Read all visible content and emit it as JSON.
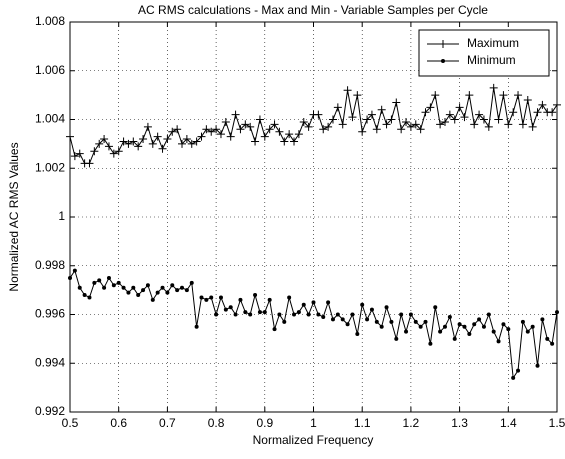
{
  "chart_data": {
    "type": "line",
    "title": "AC RMS calculations - Max and Min - Variable Samples per Cycle",
    "xlabel": "Normalized Frequency",
    "ylabel": "Normalized AC RMS Values",
    "x": [
      0.5,
      0.51,
      0.52,
      0.53,
      0.54,
      0.55,
      0.56,
      0.57,
      0.58,
      0.59,
      0.6,
      0.61,
      0.62,
      0.63,
      0.64,
      0.65,
      0.66,
      0.67,
      0.68,
      0.69,
      0.7,
      0.71,
      0.72,
      0.73,
      0.74,
      0.75,
      0.76,
      0.77,
      0.78,
      0.79,
      0.8,
      0.81,
      0.82,
      0.83,
      0.84,
      0.85,
      0.86,
      0.87,
      0.88,
      0.89,
      0.9,
      0.91,
      0.92,
      0.93,
      0.94,
      0.95,
      0.96,
      0.97,
      0.98,
      0.99,
      1.0,
      1.01,
      1.02,
      1.03,
      1.04,
      1.05,
      1.06,
      1.07,
      1.08,
      1.09,
      1.1,
      1.11,
      1.12,
      1.13,
      1.14,
      1.15,
      1.16,
      1.17,
      1.18,
      1.19,
      1.2,
      1.21,
      1.22,
      1.23,
      1.24,
      1.25,
      1.26,
      1.27,
      1.28,
      1.29,
      1.3,
      1.31,
      1.32,
      1.33,
      1.34,
      1.35,
      1.36,
      1.37,
      1.38,
      1.39,
      1.4,
      1.41,
      1.42,
      1.43,
      1.44,
      1.45,
      1.46,
      1.47,
      1.48,
      1.49,
      1.5
    ],
    "series": [
      {
        "name": "Maximum",
        "color": "#000000",
        "marker": "plus",
        "values": [
          1.0033,
          1.0025,
          1.0026,
          1.0022,
          1.0022,
          1.0027,
          1.003,
          1.0032,
          1.0029,
          1.0026,
          1.0027,
          1.0031,
          1.003,
          1.0031,
          1.0029,
          1.0032,
          1.0037,
          1.003,
          1.0033,
          1.0028,
          1.0032,
          1.0035,
          1.0036,
          1.003,
          1.0032,
          1.003,
          1.0031,
          1.0033,
          1.0036,
          1.0035,
          1.0036,
          1.0034,
          1.0039,
          1.0033,
          1.0042,
          1.0036,
          1.0038,
          1.0037,
          1.0031,
          1.004,
          1.0033,
          1.0036,
          1.0038,
          1.0035,
          1.0031,
          1.0034,
          1.0031,
          1.0034,
          1.0039,
          1.0037,
          1.0042,
          1.0042,
          1.0036,
          1.0037,
          1.004,
          1.0045,
          1.0038,
          1.0052,
          1.0041,
          1.005,
          1.0035,
          1.004,
          1.0042,
          1.0036,
          1.0044,
          1.0038,
          1.004,
          1.0047,
          1.0036,
          1.0039,
          1.0037,
          1.0038,
          1.0036,
          1.0043,
          1.0045,
          1.005,
          1.0038,
          1.0039,
          1.0042,
          1.004,
          1.0045,
          1.0041,
          1.005,
          1.0038,
          1.0042,
          1.004,
          1.0037,
          1.0053,
          1.004,
          1.005,
          1.0038,
          1.0043,
          1.005,
          1.0038,
          1.0048,
          1.0037,
          1.0043,
          1.0046,
          1.0043,
          1.0043,
          1.0046
        ]
      },
      {
        "name": "Minimum",
        "color": "#000000",
        "marker": "dot",
        "values": [
          0.9975,
          0.9978,
          0.9971,
          0.9968,
          0.9967,
          0.9973,
          0.9974,
          0.9971,
          0.9975,
          0.9972,
          0.9973,
          0.9971,
          0.9969,
          0.9971,
          0.9968,
          0.997,
          0.9972,
          0.9966,
          0.9969,
          0.9971,
          0.9969,
          0.9972,
          0.997,
          0.9971,
          0.997,
          0.9973,
          0.9955,
          0.9967,
          0.9966,
          0.9967,
          0.996,
          0.9967,
          0.9962,
          0.9963,
          0.996,
          0.9966,
          0.9961,
          0.996,
          0.9968,
          0.9961,
          0.9961,
          0.9966,
          0.9954,
          0.996,
          0.9957,
          0.9967,
          0.996,
          0.9961,
          0.9964,
          0.996,
          0.9965,
          0.996,
          0.9959,
          0.9965,
          0.9958,
          0.996,
          0.9958,
          0.9956,
          0.996,
          0.9952,
          0.9964,
          0.9958,
          0.9962,
          0.9957,
          0.9955,
          0.9963,
          0.9957,
          0.995,
          0.996,
          0.9953,
          0.996,
          0.9957,
          0.9955,
          0.9957,
          0.9948,
          0.9963,
          0.9953,
          0.9955,
          0.9959,
          0.995,
          0.9956,
          0.9955,
          0.9952,
          0.9956,
          0.9958,
          0.9955,
          0.996,
          0.9953,
          0.9949,
          0.9956,
          0.9954,
          0.9934,
          0.9937,
          0.9957,
          0.9953,
          0.9955,
          0.9939,
          0.9958,
          0.995,
          0.9948,
          0.9961
        ]
      }
    ],
    "xlim": [
      0.5,
      1.5
    ],
    "xticks": [
      0.5,
      0.6,
      0.7,
      0.8,
      0.9,
      1,
      1.1,
      1.2,
      1.3,
      1.4,
      1.5
    ],
    "ylim": [
      0.992,
      1.008
    ],
    "yticks": [
      0.992,
      0.994,
      0.996,
      0.998,
      1,
      1.002,
      1.004,
      1.006,
      1.008
    ],
    "grid": true,
    "legend": "upper right"
  }
}
